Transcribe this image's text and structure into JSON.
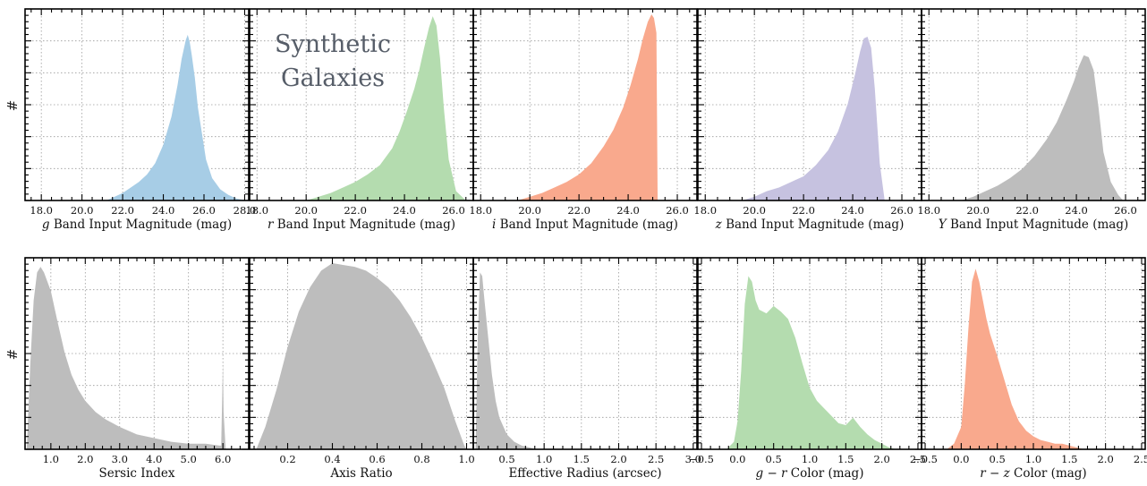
{
  "annotation": [
    "Synthetic",
    "Galaxies"
  ],
  "ylabel": "#",
  "chart_data": [
    {
      "type": "area",
      "xlabel_prefix": "g",
      "xlabel": "Band Input Magnitude (mag)",
      "xlim": [
        17.2,
        28.2
      ],
      "ticks": [
        "18.0",
        "20.0",
        "22.0",
        "24.0",
        "26.0",
        "28.0"
      ],
      "tick_values": [
        18,
        20,
        22,
        24,
        26,
        28
      ],
      "color": "#a7cde6",
      "x": [
        21.2,
        21.6,
        22.0,
        22.4,
        22.8,
        23.2,
        23.6,
        24.0,
        24.4,
        24.7,
        24.9,
        25.1,
        25.2,
        25.3,
        25.4,
        25.55,
        25.7,
        25.9,
        26.1,
        26.4,
        26.8,
        27.2,
        27.6,
        28.1
      ],
      "y": [
        0,
        0.02,
        0.04,
        0.07,
        0.1,
        0.14,
        0.2,
        0.3,
        0.45,
        0.62,
        0.76,
        0.86,
        0.89,
        0.85,
        0.78,
        0.66,
        0.5,
        0.36,
        0.22,
        0.12,
        0.06,
        0.03,
        0.01,
        0
      ]
    },
    {
      "type": "area",
      "xlabel_prefix": "r",
      "xlabel": "Band Input Magnitude (mag)",
      "xlim": [
        17.7,
        26.8
      ],
      "ticks": [
        "18.0",
        "20.0",
        "22.0",
        "24.0",
        "26.0"
      ],
      "tick_values": [
        18,
        20,
        22,
        24,
        26
      ],
      "color": "#b4dcaf",
      "x": [
        20.0,
        20.5,
        21.0,
        21.5,
        22.0,
        22.5,
        23.0,
        23.5,
        23.8,
        24.1,
        24.4,
        24.6,
        24.8,
        25.0,
        25.15,
        25.3,
        25.45,
        25.6,
        25.8,
        26.1,
        26.5
      ],
      "y": [
        0,
        0.02,
        0.04,
        0.07,
        0.1,
        0.14,
        0.19,
        0.28,
        0.37,
        0.48,
        0.6,
        0.7,
        0.82,
        0.93,
        0.99,
        0.94,
        0.76,
        0.5,
        0.22,
        0.05,
        0
      ]
    },
    {
      "type": "area",
      "xlabel_prefix": "i",
      "xlabel": "Band Input Magnitude (mag)",
      "xlim": [
        17.7,
        26.8
      ],
      "ticks": [
        "18.0",
        "20.0",
        "22.0",
        "24.0",
        "26.0"
      ],
      "tick_values": [
        18,
        20,
        22,
        24,
        26
      ],
      "color": "#f9a98d",
      "x": [
        19.5,
        20.0,
        20.5,
        21.0,
        21.5,
        22.0,
        22.5,
        23.0,
        23.4,
        23.8,
        24.1,
        24.4,
        24.6,
        24.8,
        24.95,
        25.05,
        25.15,
        25.2
      ],
      "y": [
        0,
        0.02,
        0.04,
        0.07,
        0.1,
        0.14,
        0.2,
        0.29,
        0.38,
        0.5,
        0.62,
        0.76,
        0.87,
        0.96,
        1.0,
        0.98,
        0.9,
        0
      ]
    },
    {
      "type": "area",
      "xlabel_prefix": "z",
      "xlabel": "Band Input Magnitude (mag)",
      "xlim": [
        17.7,
        26.8
      ],
      "ticks": [
        "18.0",
        "20.0",
        "22.0",
        "24.0",
        "26.0"
      ],
      "tick_values": [
        18,
        20,
        22,
        24,
        26
      ],
      "color": "#c6c2e0",
      "x": [
        19.5,
        20.0,
        20.5,
        21.0,
        21.5,
        22.0,
        22.5,
        23.0,
        23.4,
        23.8,
        24.1,
        24.3,
        24.45,
        24.6,
        24.75,
        24.9,
        25.1,
        25.3
      ],
      "y": [
        0,
        0.02,
        0.05,
        0.07,
        0.1,
        0.13,
        0.19,
        0.27,
        0.37,
        0.52,
        0.68,
        0.8,
        0.87,
        0.88,
        0.82,
        0.6,
        0.2,
        0
      ]
    },
    {
      "type": "area",
      "xlabel_prefix": "Y",
      "xlabel": "Band Input Magnitude (mag)",
      "xlim": [
        17.7,
        26.8
      ],
      "ticks": [
        "18.0",
        "20.0",
        "22.0",
        "24.0",
        "26.0"
      ],
      "tick_values": [
        18,
        20,
        22,
        24,
        26
      ],
      "color": "#bdbdbd",
      "x": [
        19.3,
        19.8,
        20.3,
        20.8,
        21.3,
        21.8,
        22.3,
        22.8,
        23.2,
        23.6,
        23.9,
        24.1,
        24.3,
        24.5,
        24.7,
        24.9,
        25.1,
        25.4,
        25.7,
        25.9
      ],
      "y": [
        0,
        0.02,
        0.05,
        0.08,
        0.12,
        0.17,
        0.24,
        0.33,
        0.42,
        0.54,
        0.64,
        0.72,
        0.78,
        0.77,
        0.7,
        0.5,
        0.26,
        0.1,
        0.03,
        0
      ]
    },
    {
      "type": "area",
      "xlabel": "Sersic Index",
      "xlim": [
        0.25,
        6.75
      ],
      "ticks": [
        "1.0",
        "2.0",
        "3.0",
        "4.0",
        "5.0",
        "6.0"
      ],
      "tick_values": [
        1,
        2,
        3,
        4,
        5,
        6
      ],
      "color": "#bdbdbd",
      "x": [
        0.3,
        0.4,
        0.5,
        0.6,
        0.7,
        0.8,
        0.9,
        1.0,
        1.2,
        1.4,
        1.6,
        1.8,
        2.0,
        2.3,
        2.6,
        3.0,
        3.5,
        4.0,
        4.5,
        5.0,
        5.5,
        5.9,
        5.95,
        6.0,
        6.02,
        6.08,
        6.2
      ],
      "y": [
        0,
        0.45,
        0.8,
        0.95,
        0.98,
        0.95,
        0.9,
        0.85,
        0.68,
        0.52,
        0.4,
        0.32,
        0.26,
        0.2,
        0.16,
        0.12,
        0.08,
        0.06,
        0.04,
        0.03,
        0.03,
        0.02,
        0.02,
        0.47,
        0.2,
        0,
        0
      ]
    },
    {
      "type": "area",
      "xlabel": "Axis Ratio",
      "xlim": [
        0.03,
        1.03
      ],
      "ticks": [
        "0.2",
        "0.4",
        "0.6",
        "0.8",
        "1.0"
      ],
      "tick_values": [
        0.2,
        0.4,
        0.6,
        0.8,
        1.0
      ],
      "color": "#bdbdbd",
      "x": [
        0.06,
        0.1,
        0.15,
        0.2,
        0.25,
        0.3,
        0.35,
        0.4,
        0.45,
        0.5,
        0.55,
        0.6,
        0.65,
        0.7,
        0.75,
        0.8,
        0.85,
        0.9,
        0.95,
        0.99,
        1.0
      ],
      "y": [
        0,
        0.12,
        0.32,
        0.55,
        0.74,
        0.87,
        0.96,
        1.0,
        0.99,
        0.98,
        0.96,
        0.92,
        0.87,
        0.8,
        0.71,
        0.6,
        0.47,
        0.33,
        0.15,
        0.02,
        0
      ]
    },
    {
      "type": "area",
      "xlabel": "Effective Radius (arcsec)",
      "xlim": [
        0.05,
        3.05
      ],
      "ticks": [
        "0.5",
        "1.0",
        "1.5",
        "2.0",
        "2.5",
        "3.0"
      ],
      "tick_values": [
        0.5,
        1,
        1.5,
        2,
        2.5,
        3
      ],
      "color": "#bdbdbd",
      "x": [
        0.08,
        0.11,
        0.14,
        0.17,
        0.2,
        0.25,
        0.3,
        0.35,
        0.4,
        0.5,
        0.6,
        0.7,
        0.8,
        0.9,
        1.0
      ],
      "y": [
        0,
        0.6,
        0.95,
        0.93,
        0.8,
        0.6,
        0.4,
        0.26,
        0.17,
        0.08,
        0.04,
        0.02,
        0.01,
        0,
        0
      ]
    },
    {
      "type": "area",
      "xlabel_prefix": "g − r",
      "xlabel": "Color (mag)",
      "xlim": [
        -0.55,
        2.55
      ],
      "ticks": [
        "−0.5",
        "0.0",
        "0.5",
        "1.0",
        "1.5",
        "2.0",
        "2.5"
      ],
      "tick_values": [
        -0.5,
        0,
        0.5,
        1,
        1.5,
        2,
        2.5
      ],
      "color": "#b4dcaf",
      "x": [
        -0.15,
        -0.05,
        0.0,
        0.05,
        0.1,
        0.15,
        0.2,
        0.25,
        0.3,
        0.4,
        0.5,
        0.6,
        0.7,
        0.8,
        0.9,
        1.0,
        1.1,
        1.2,
        1.3,
        1.4,
        1.5,
        1.6,
        1.7,
        1.8,
        1.9,
        2.0,
        2.1,
        2.2
      ],
      "y": [
        0,
        0.04,
        0.15,
        0.42,
        0.78,
        0.93,
        0.9,
        0.8,
        0.75,
        0.73,
        0.77,
        0.74,
        0.7,
        0.6,
        0.46,
        0.33,
        0.26,
        0.22,
        0.18,
        0.14,
        0.13,
        0.17,
        0.12,
        0.08,
        0.05,
        0.03,
        0.01,
        0
      ]
    },
    {
      "type": "area",
      "xlabel_prefix": "r − z",
      "xlabel": "Color (mag)",
      "xlim": [
        -0.55,
        2.55
      ],
      "ticks": [
        "−0.5",
        "0.0",
        "0.5",
        "1.0",
        "1.5",
        "2.0",
        "2.5"
      ],
      "tick_values": [
        -0.5,
        0,
        0.5,
        1,
        1.5,
        2,
        2.5
      ],
      "color": "#f9a98d",
      "x": [
        -0.2,
        -0.1,
        0.0,
        0.05,
        0.1,
        0.15,
        0.2,
        0.25,
        0.3,
        0.35,
        0.4,
        0.5,
        0.6,
        0.7,
        0.8,
        0.9,
        1.0,
        1.1,
        1.2,
        1.3,
        1.4,
        1.5,
        1.6,
        1.7
      ],
      "y": [
        0,
        0.03,
        0.12,
        0.35,
        0.65,
        0.9,
        0.97,
        0.9,
        0.8,
        0.7,
        0.62,
        0.5,
        0.37,
        0.24,
        0.15,
        0.1,
        0.07,
        0.05,
        0.04,
        0.03,
        0.03,
        0.02,
        0.01,
        0
      ]
    }
  ]
}
